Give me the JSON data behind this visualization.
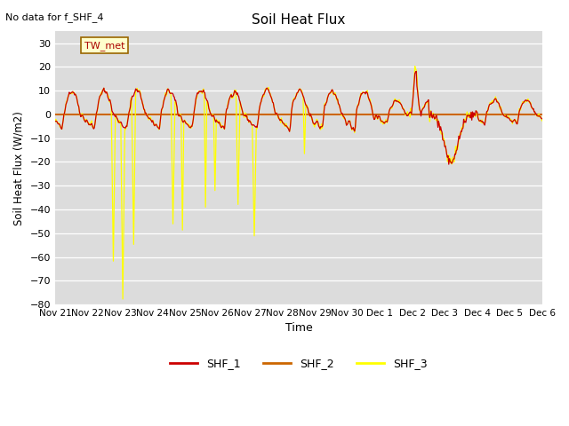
{
  "title": "Soil Heat Flux",
  "note": "No data for f_SHF_4",
  "ylabel": "Soil Heat Flux (W/m2)",
  "xlabel": "Time",
  "ylim": [
    -80,
    35
  ],
  "yticks": [
    -80,
    -70,
    -60,
    -50,
    -40,
    -30,
    -20,
    -10,
    0,
    10,
    20,
    30
  ],
  "color_SHF1": "#cc0000",
  "color_SHF2": "#cc6600",
  "color_SHF3": "#ffff00",
  "bg_color": "#dcdcdc",
  "legend_labels": [
    "SHF_1",
    "SHF_2",
    "SHF_3"
  ],
  "annotation_text": "TW_met",
  "x_tick_labels": [
    "Nov 21",
    "Nov 22",
    "Nov 23",
    "Nov 24",
    "Nov 25",
    "Nov 26",
    "Nov 27",
    "Nov 28",
    "Nov 29",
    "Nov 30",
    "Dec 1",
    "Dec 2",
    "Dec 3",
    "Dec 4",
    "Dec 5",
    "Dec 6"
  ],
  "n_days": 16,
  "pts_per_day": 48
}
